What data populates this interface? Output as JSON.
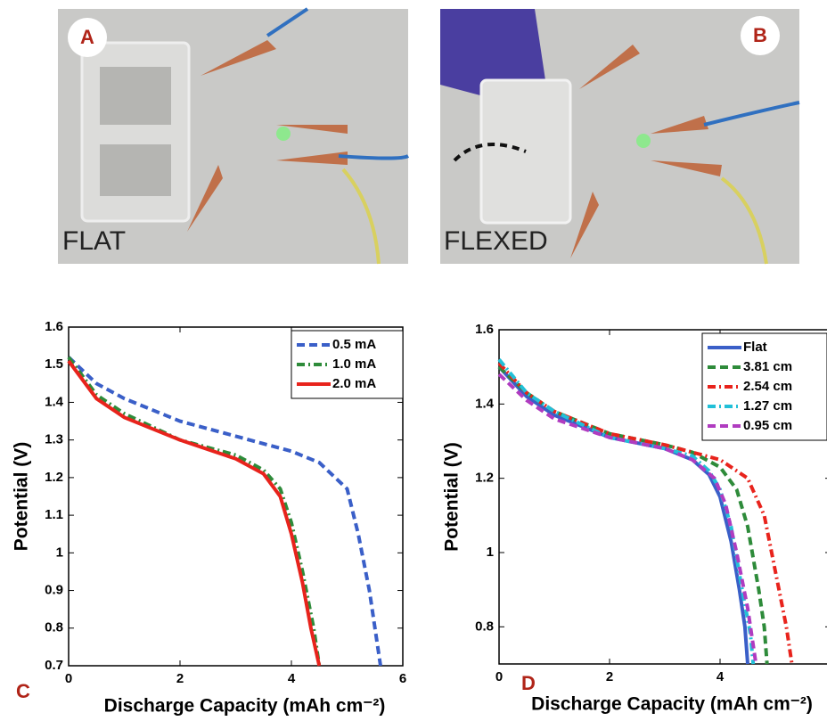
{
  "photos": [
    {
      "label": "A",
      "caption": "FLAT"
    },
    {
      "label": "B",
      "caption": "FLEXED"
    }
  ],
  "chart_data": [
    {
      "type": "line",
      "panel_label": "C",
      "xlabel": "Discharge Capacity (mAh cm⁻²)",
      "ylabel": "Potential (V)",
      "xlim": [
        0,
        6
      ],
      "xticks": [
        0,
        2,
        4,
        6
      ],
      "ylim": [
        0.7,
        1.6
      ],
      "yticks": [
        0.7,
        0.8,
        0.9,
        1,
        1.1,
        1.2,
        1.3,
        1.4,
        1.5,
        1.6
      ],
      "legend": "upper right",
      "series": [
        {
          "name": "0.5 mA",
          "color": "#3a5fc8",
          "dash": "dashed",
          "x": [
            0,
            0.5,
            1,
            2,
            3,
            4,
            4.5,
            5,
            5.2,
            5.4,
            5.6
          ],
          "values": [
            1.52,
            1.45,
            1.41,
            1.35,
            1.31,
            1.27,
            1.24,
            1.17,
            1.05,
            0.9,
            0.7
          ]
        },
        {
          "name": "1.0 mA",
          "color": "#2e8b3a",
          "dash": "dashdot",
          "x": [
            0,
            0.5,
            1,
            2,
            3,
            3.5,
            3.8,
            4,
            4.2,
            4.4,
            4.5
          ],
          "values": [
            1.52,
            1.42,
            1.37,
            1.3,
            1.26,
            1.22,
            1.17,
            1.08,
            0.95,
            0.8,
            0.7
          ]
        },
        {
          "name": "2.0 mA",
          "color": "#e8231c",
          "dash": "solid",
          "x": [
            0,
            0.5,
            1,
            2,
            3,
            3.5,
            3.8,
            4,
            4.2,
            4.35,
            4.5
          ],
          "values": [
            1.51,
            1.41,
            1.36,
            1.3,
            1.25,
            1.21,
            1.15,
            1.05,
            0.92,
            0.8,
            0.7
          ]
        }
      ]
    },
    {
      "type": "line",
      "panel_label": "D",
      "xlabel": "Discharge Capacity (mAh cm⁻²)",
      "ylabel": "Potential (V)",
      "xlim": [
        0,
        6
      ],
      "xticks": [
        0,
        2,
        4
      ],
      "ylim": [
        0.7,
        1.6
      ],
      "yticks": [
        0.8,
        1,
        1.2,
        1.4,
        1.6
      ],
      "legend": "upper right",
      "series": [
        {
          "name": "Flat",
          "color": "#3a5fc8",
          "dash": "solid",
          "x": [
            0,
            0.5,
            1,
            2,
            3,
            3.5,
            3.8,
            4,
            4.2,
            4.35,
            4.45,
            4.5
          ],
          "values": [
            1.5,
            1.42,
            1.37,
            1.31,
            1.28,
            1.25,
            1.21,
            1.15,
            1.03,
            0.9,
            0.8,
            0.7
          ]
        },
        {
          "name": "3.81 cm",
          "color": "#2e8b3a",
          "dash": "dashed",
          "x": [
            0,
            0.5,
            1,
            2,
            3,
            3.5,
            4,
            4.3,
            4.5,
            4.7,
            4.8,
            4.85
          ],
          "values": [
            1.5,
            1.43,
            1.38,
            1.32,
            1.29,
            1.27,
            1.23,
            1.17,
            1.07,
            0.9,
            0.8,
            0.7
          ]
        },
        {
          "name": "2.54 cm",
          "color": "#e8231c",
          "dash": "dashdot",
          "x": [
            0,
            0.5,
            1,
            2,
            3,
            3.5,
            4,
            4.5,
            4.8,
            5,
            5.2,
            5.3
          ],
          "values": [
            1.51,
            1.43,
            1.38,
            1.32,
            1.29,
            1.27,
            1.25,
            1.2,
            1.1,
            0.95,
            0.8,
            0.7
          ]
        },
        {
          "name": "1.27 cm",
          "color": "#22c0d8",
          "dash": "dashdot",
          "x": [
            0,
            0.5,
            1,
            2,
            3,
            3.5,
            3.8,
            4,
            4.2,
            4.4,
            4.55,
            4.6
          ],
          "values": [
            1.52,
            1.43,
            1.38,
            1.31,
            1.28,
            1.26,
            1.22,
            1.17,
            1.07,
            0.9,
            0.78,
            0.7
          ]
        },
        {
          "name": "0.95 cm",
          "color": "#b03cc0",
          "dash": "dashed",
          "x": [
            0,
            0.5,
            1,
            2,
            3,
            3.5,
            3.9,
            4.1,
            4.3,
            4.5,
            4.65
          ],
          "values": [
            1.48,
            1.41,
            1.36,
            1.31,
            1.28,
            1.25,
            1.2,
            1.13,
            1,
            0.85,
            0.7
          ]
        }
      ]
    }
  ]
}
